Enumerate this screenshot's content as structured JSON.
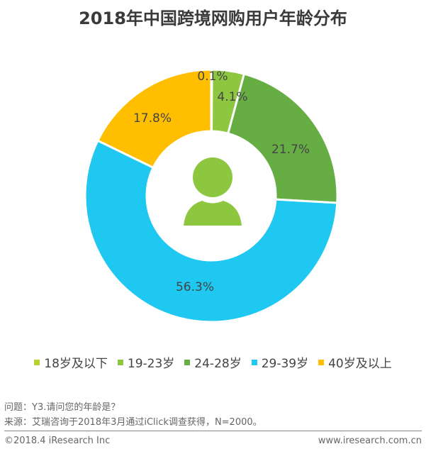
{
  "chart_data": {
    "type": "pie",
    "donut": true,
    "title": "2018年中国跨境网购用户年龄分布",
    "categories": [
      "18岁及以下",
      "19-23岁",
      "24-28岁",
      "29-39岁",
      "40岁及以上"
    ],
    "values": [
      0.1,
      4.1,
      21.7,
      56.3,
      17.8
    ],
    "labels": [
      "0.1%",
      "4.1%",
      "21.7%",
      "56.3%",
      "17.8%"
    ],
    "colors": [
      "#b5d334",
      "#8dc63f",
      "#66ad44",
      "#1fc8f1",
      "#ffbf00"
    ],
    "center_icon": "user-icon",
    "legend_position": "bottom"
  },
  "notes": {
    "question": "问题：Y3.请问您的年龄是？",
    "source": "来源：艾瑞咨询于2018年3月通过iClick调查获得，N=2000。"
  },
  "footer": {
    "copyright": "©2018.4 iResearch Inc",
    "url": "www.iresearch.com.cn"
  }
}
